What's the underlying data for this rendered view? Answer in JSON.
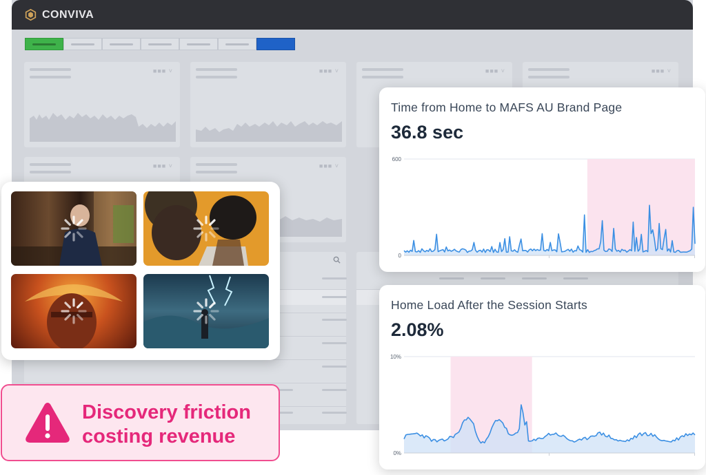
{
  "app": {
    "brand": "CONVIVA",
    "accent_green": "#3eb24a",
    "accent_blue": "#1f62c7"
  },
  "dashboard": {
    "tabs": [
      "",
      "",
      "",
      "",
      "",
      "",
      ""
    ],
    "card_menu_glyph": "■■■ ˅"
  },
  "thumbnails": {
    "icon": "loading-spinner-icon",
    "count": 4
  },
  "metric_1": {
    "title": "Time from Home to MAFS AU Brand Page",
    "value": "36.8 sec",
    "y_max_label": "600",
    "y_min_label": "0",
    "line_color": "#3b8fe3",
    "highlight_color": "#fbe3ee"
  },
  "metric_2": {
    "title": "Home Load After the Session Starts",
    "value": "2.08%",
    "y_max_label": "10%",
    "y_min_label": "0%",
    "line_color": "#3b8fe3",
    "highlight_color": "#fbe3ee"
  },
  "alert": {
    "line1": "Discovery friction",
    "line2": "costing revenue",
    "icon": "warning-triangle-icon",
    "color": "#e5287a"
  }
}
